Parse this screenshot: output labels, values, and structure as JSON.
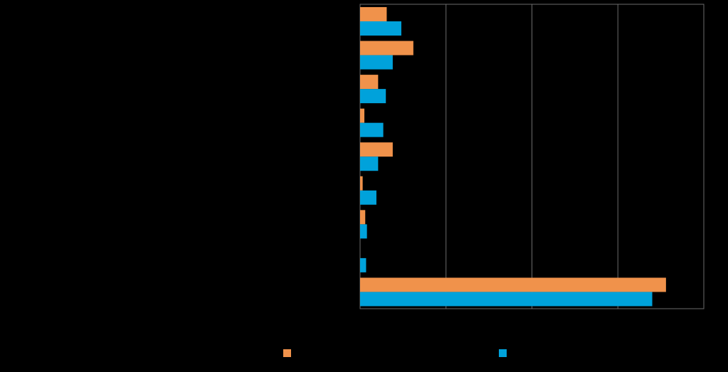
{
  "chart_data": {
    "type": "bar",
    "orientation": "horizontal",
    "title": "",
    "xlabel": "",
    "ylabel": "",
    "xlim": [
      0,
      4
    ],
    "grid": true,
    "legend_position": "bottom",
    "categories": [
      "",
      "",
      "",
      "",
      "",
      "",
      "",
      "",
      ""
    ],
    "series": [
      {
        "values": [
          0.31,
          0.62,
          0.21,
          0.05,
          0.38,
          0.03,
          0.06,
          0.0,
          3.56
        ],
        "color": "#F0924B"
      },
      {
        "values": [
          0.48,
          0.38,
          0.3,
          0.27,
          0.21,
          0.19,
          0.08,
          0.07,
          3.4
        ],
        "color": "#00A2DB"
      }
    ]
  }
}
